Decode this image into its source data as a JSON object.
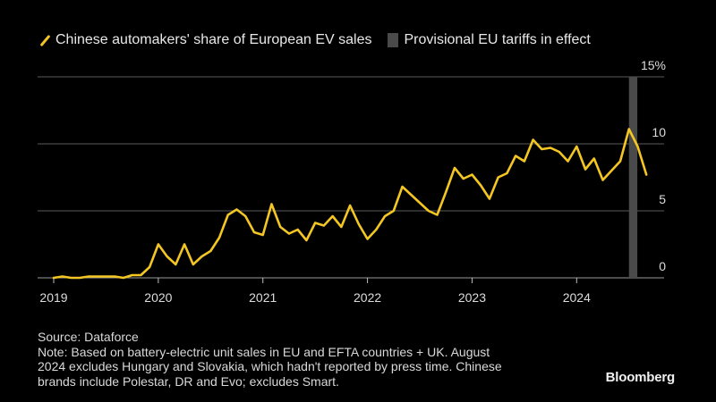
{
  "legend": {
    "series_label": "Chinese automakers' share of European EV sales",
    "shade_label": "Provisional EU tariffs in effect"
  },
  "colors": {
    "line": "#f3c623",
    "shade": "#4a4a4a",
    "grid": "#5a5a5a",
    "background": "#000000"
  },
  "chart_data": {
    "type": "line",
    "title": "",
    "xlabel": "",
    "ylabel": "",
    "ylim": [
      0,
      15
    ],
    "xlim": [
      2019.0,
      2024.99
    ],
    "y_ticks": [
      {
        "value": 15,
        "label": "15%"
      },
      {
        "value": 10,
        "label": "10"
      },
      {
        "value": 5,
        "label": "5"
      },
      {
        "value": 0,
        "label": "0"
      }
    ],
    "x_ticks": [
      {
        "value": 2019,
        "label": "2019"
      },
      {
        "value": 2020,
        "label": "2020"
      },
      {
        "value": 2021,
        "label": "2021"
      },
      {
        "value": 2022,
        "label": "2022"
      },
      {
        "value": 2023,
        "label": "2023"
      },
      {
        "value": 2024,
        "label": "2024"
      }
    ],
    "shaded_region": {
      "label": "Provisional EU tariffs in effect",
      "x_start": 2024.5,
      "x_end": 2024.58
    },
    "series": [
      {
        "name": "Chinese automakers' share of European EV sales",
        "start": 2019.0,
        "step_months": 1,
        "values": [
          0.0,
          0.1,
          0.0,
          0.0,
          0.1,
          0.1,
          0.1,
          0.1,
          0.0,
          0.2,
          0.2,
          0.8,
          2.5,
          1.6,
          1.0,
          2.5,
          1.0,
          1.6,
          2.0,
          3.0,
          4.7,
          5.1,
          4.6,
          3.4,
          3.2,
          5.5,
          3.8,
          3.3,
          3.6,
          2.8,
          4.1,
          3.9,
          4.6,
          3.8,
          5.4,
          4.0,
          2.9,
          3.6,
          4.6,
          5.0,
          6.8,
          6.2,
          5.6,
          5.0,
          4.7,
          6.4,
          8.2,
          7.4,
          7.7,
          6.9,
          5.9,
          7.5,
          7.8,
          9.1,
          8.7,
          10.3,
          9.6,
          9.7,
          9.4,
          8.7,
          9.8,
          8.1,
          8.9,
          7.3,
          8.0,
          8.7,
          11.1,
          9.8,
          7.7
        ]
      }
    ]
  },
  "source": "Source: Dataforce",
  "note_lines": [
    "Note: Based on battery-electric unit sales in EU and EFTA countries + UK. August",
    "2024 excludes Hungary and Slovakia, which hadn't reported by press time. Chinese",
    "brands include Polestar, DR and Evo; excludes Smart."
  ],
  "brand": "Bloomberg"
}
